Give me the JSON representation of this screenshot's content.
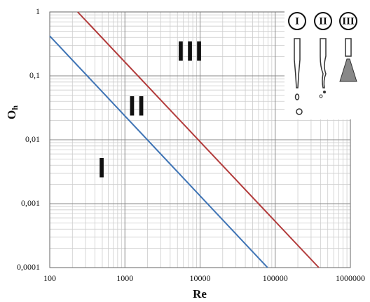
{
  "chart_data": {
    "type": "line",
    "xlabel": "Re",
    "ylabel": [
      "O",
      "h"
    ],
    "xlog": true,
    "ylog": true,
    "grid": true,
    "xlim": [
      100,
      1000000
    ],
    "ylim": [
      0.0001,
      1
    ],
    "xticks": [
      100,
      1000,
      10000,
      100000,
      1000000
    ],
    "yticks": [
      {
        "value": 0.0001,
        "label": "0,0001"
      },
      {
        "value": 0.001,
        "label": "0,001"
      },
      {
        "value": 0.01,
        "label": "0,01"
      },
      {
        "value": 0.1,
        "label": "0,1"
      },
      1
    ],
    "series": [
      {
        "color": "#3f74b5",
        "x": [
          100,
          79000
        ],
        "values": [
          0.42,
          0.0001
        ]
      },
      {
        "color": "#b23b3b",
        "x": [
          235,
          380000
        ],
        "values": [
          1,
          0.0001
        ]
      }
    ],
    "annotations": [
      "I",
      "II",
      "III"
    ],
    "inset_labels": [
      "I",
      "II",
      "III"
    ]
  }
}
